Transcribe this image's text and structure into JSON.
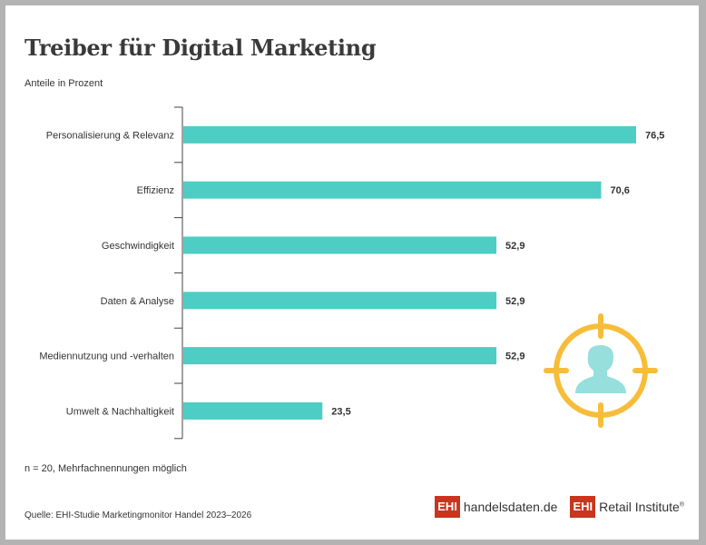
{
  "title": "Treiber für Digital Marketing",
  "subtitle": "Anteile in Prozent",
  "note": "n = 20, Mehrfachnennungen möglich",
  "source": "Quelle: EHI-Studie Marketingmonitor Handel 2023–2026",
  "logos": {
    "handelsdaten_mark": "EHI",
    "handelsdaten_text": "handelsdaten.de",
    "retail_mark": "EHI",
    "retail_text": "Retail Institute",
    "retail_reg": "®"
  },
  "colors": {
    "bar": "#4ecdc4",
    "target": "#f7bd3a",
    "person": "#97dfdc",
    "brand": "#c8361e"
  },
  "icon": "target-person-icon",
  "chart_data": {
    "type": "bar",
    "orientation": "horizontal",
    "categories": [
      "Personalisierung & Relevanz",
      "Effizienz",
      "Geschwindigkeit",
      "Daten & Analyse",
      "Mediennutzung und -verhalten",
      "Umwelt & Nachhaltigkeit"
    ],
    "values": [
      76.5,
      70.6,
      52.9,
      52.9,
      52.9,
      23.5
    ],
    "labels": [
      "76,5",
      "70,6",
      "52,9",
      "52,9",
      "52,9",
      "23,5"
    ],
    "xlim": [
      0,
      76.5
    ],
    "grid": false
  }
}
